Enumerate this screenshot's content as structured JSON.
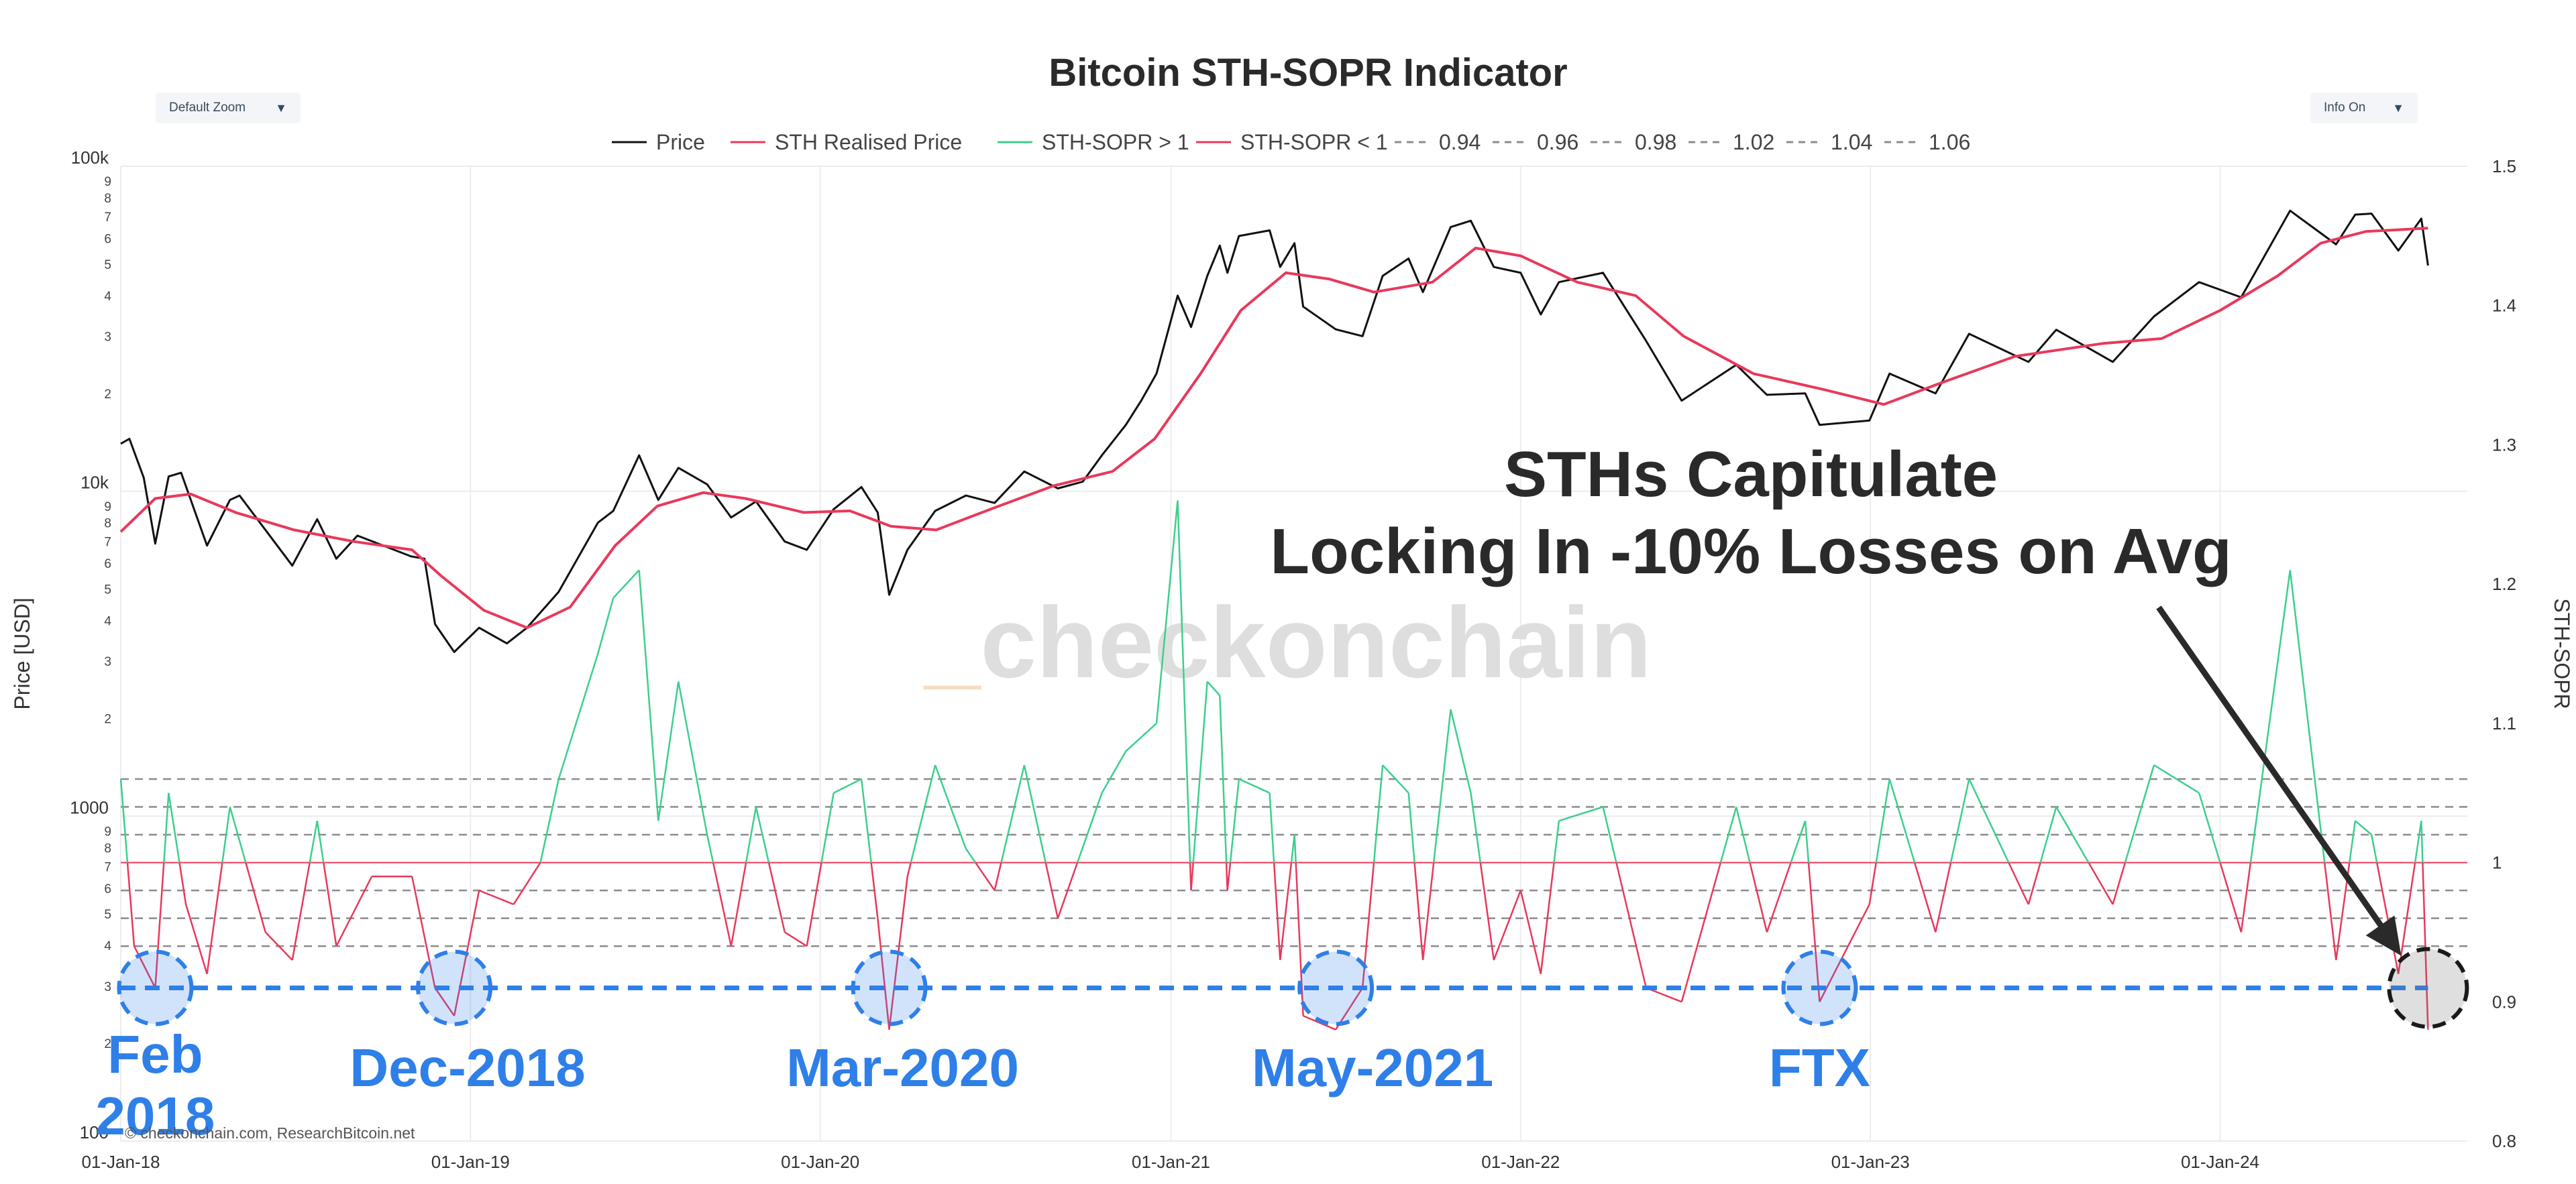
{
  "controls": {
    "zoom_label": "Default Zoom",
    "info_label": "Info On",
    "caret": "▼"
  },
  "watermark": {
    "prefix": "_",
    "text": "checkonchain"
  },
  "source_text": "© checkonchain.com, ResearchBitcoin.net",
  "colors": {
    "price": "#111111",
    "realised": "#e8395b",
    "sopr_up": "#3ccf8e",
    "sopr_down": "#e8395b",
    "levels": "#8c8c8c",
    "highlight": "#2f7fe8",
    "annotation": "#2a2a2a"
  },
  "annotations": {
    "headline_line1": "STHs Capitulate",
    "headline_line2": "Locking In -10% Losses on Avg",
    "events": [
      {
        "label": "Feb\n2018",
        "date": "2018-02-06",
        "sopr": 0.91
      },
      {
        "label": "Dec-2018",
        "date": "2018-12-15",
        "sopr": 0.91
      },
      {
        "label": "Mar-2020",
        "date": "2020-03-13",
        "sopr": 0.91
      },
      {
        "label": "May-2021",
        "date": "2021-06-22",
        "sopr": 0.91
      },
      {
        "label": "FTX",
        "date": "2022-11-09",
        "sopr": 0.91
      }
    ],
    "current_marker": {
      "date": "2024-08-05",
      "sopr": 0.91
    },
    "threshold_sopr": 0.91
  },
  "chart_data": {
    "type": "line",
    "title": "Bitcoin STH-SOPR Indicator",
    "legend_position": "top",
    "legend": [
      "Price",
      "STH Realised Price",
      "STH-SOPR > 1",
      "STH-SOPR < 1",
      "0.94",
      "0.96",
      "0.98",
      "1.02",
      "1.04",
      "1.06"
    ],
    "x_axis": {
      "range": [
        "2018-01-01",
        "2024-09-15"
      ],
      "ticks": [
        "01-Jan-18",
        "01-Jan-19",
        "01-Jan-20",
        "01-Jan-21",
        "01-Jan-22",
        "01-Jan-23",
        "01-Jan-24"
      ],
      "tick_dates": [
        "2018-01-01",
        "2019-01-01",
        "2020-01-01",
        "2021-01-01",
        "2022-01-01",
        "2023-01-01",
        "2024-01-01"
      ]
    },
    "y_left": {
      "label": "Price [USD]",
      "scale": "log",
      "range": [
        100,
        100000
      ],
      "major_ticks": [
        {
          "v": 100,
          "t": "100"
        },
        {
          "v": 1000,
          "t": "1000"
        },
        {
          "v": 10000,
          "t": "10k"
        },
        {
          "v": 100000,
          "t": "100k"
        }
      ],
      "minor_ticks": [
        2,
        3,
        4,
        5,
        6,
        7,
        8,
        9
      ]
    },
    "y_right": {
      "label": "STH-SOPR",
      "range": [
        0.8,
        1.5
      ],
      "ticks": [
        "0.8",
        "0.9",
        "1",
        "1.1",
        "1.2",
        "1.3",
        "1.4",
        "1.5"
      ]
    },
    "reference_levels": [
      0.94,
      0.96,
      0.98,
      1.02,
      1.04,
      1.06
    ],
    "grid": true,
    "series": [
      {
        "name": "Price",
        "axis": "left",
        "points": [
          [
            "2018-01-01",
            14000
          ],
          [
            "2018-01-10",
            14500
          ],
          [
            "2018-01-25",
            11000
          ],
          [
            "2018-02-06",
            6900
          ],
          [
            "2018-02-20",
            11100
          ],
          [
            "2018-03-05",
            11400
          ],
          [
            "2018-04-01",
            6800
          ],
          [
            "2018-04-25",
            9400
          ],
          [
            "2018-05-05",
            9700
          ],
          [
            "2018-06-29",
            5900
          ],
          [
            "2018-07-25",
            8200
          ],
          [
            "2018-08-14",
            6200
          ],
          [
            "2018-09-05",
            7300
          ],
          [
            "2018-10-31",
            6300
          ],
          [
            "2018-11-14",
            6200
          ],
          [
            "2018-11-25",
            3900
          ],
          [
            "2018-12-15",
            3200
          ],
          [
            "2019-01-10",
            3800
          ],
          [
            "2019-02-08",
            3400
          ],
          [
            "2019-03-01",
            3800
          ],
          [
            "2019-04-03",
            4900
          ],
          [
            "2019-05-14",
            8000
          ],
          [
            "2019-05-30",
            8700
          ],
          [
            "2019-06-26",
            12900
          ],
          [
            "2019-07-16",
            9400
          ],
          [
            "2019-08-06",
            11800
          ],
          [
            "2019-09-05",
            10500
          ],
          [
            "2019-09-30",
            8300
          ],
          [
            "2019-10-26",
            9300
          ],
          [
            "2019-11-25",
            7000
          ],
          [
            "2019-12-18",
            6600
          ],
          [
            "2020-01-15",
            8800
          ],
          [
            "2020-02-13",
            10300
          ],
          [
            "2020-03-01",
            8600
          ],
          [
            "2020-03-13",
            4800
          ],
          [
            "2020-04-01",
            6600
          ],
          [
            "2020-04-30",
            8700
          ],
          [
            "2020-06-01",
            9700
          ],
          [
            "2020-07-01",
            9200
          ],
          [
            "2020-08-01",
            11500
          ],
          [
            "2020-09-05",
            10200
          ],
          [
            "2020-10-01",
            10700
          ],
          [
            "2020-10-21",
            12900
          ],
          [
            "2020-11-15",
            16000
          ],
          [
            "2020-12-01",
            19000
          ],
          [
            "2020-12-17",
            23000
          ],
          [
            "2021-01-08",
            40000
          ],
          [
            "2021-01-22",
            32000
          ],
          [
            "2021-02-08",
            46000
          ],
          [
            "2021-02-21",
            57000
          ],
          [
            "2021-03-01",
            47000
          ],
          [
            "2021-03-13",
            61000
          ],
          [
            "2021-04-14",
            63500
          ],
          [
            "2021-04-25",
            49000
          ],
          [
            "2021-05-10",
            58000
          ],
          [
            "2021-05-19",
            37000
          ],
          [
            "2021-06-22",
            31500
          ],
          [
            "2021-07-20",
            30000
          ],
          [
            "2021-08-10",
            46000
          ],
          [
            "2021-09-06",
            52000
          ],
          [
            "2021-09-21",
            41000
          ],
          [
            "2021-10-20",
            65000
          ],
          [
            "2021-11-10",
            68000
          ],
          [
            "2021-12-04",
            49000
          ],
          [
            "2022-01-01",
            47000
          ],
          [
            "2022-01-22",
            35000
          ],
          [
            "2022-02-10",
            44000
          ],
          [
            "2022-03-28",
            47000
          ],
          [
            "2022-05-12",
            29000
          ],
          [
            "2022-06-18",
            19000
          ],
          [
            "2022-08-14",
            24500
          ],
          [
            "2022-09-15",
            19800
          ],
          [
            "2022-10-25",
            20000
          ],
          [
            "2022-11-09",
            16000
          ],
          [
            "2022-12-31",
            16500
          ],
          [
            "2023-01-21",
            23000
          ],
          [
            "2023-03-10",
            20000
          ],
          [
            "2023-04-14",
            30500
          ],
          [
            "2023-06-15",
            25000
          ],
          [
            "2023-07-14",
            31400
          ],
          [
            "2023-09-11",
            25000
          ],
          [
            "2023-10-24",
            34500
          ],
          [
            "2023-12-10",
            44000
          ],
          [
            "2024-01-23",
            39500
          ],
          [
            "2024-03-14",
            73000
          ],
          [
            "2024-05-01",
            57500
          ],
          [
            "2024-05-21",
            71000
          ],
          [
            "2024-06-07",
            71500
          ],
          [
            "2024-07-05",
            55000
          ],
          [
            "2024-07-29",
            69000
          ],
          [
            "2024-08-05",
            49500
          ]
        ]
      },
      {
        "name": "STH Realised Price",
        "axis": "left",
        "points": [
          [
            "2018-01-01",
            7500
          ],
          [
            "2018-02-06",
            9500
          ],
          [
            "2018-03-15",
            9800
          ],
          [
            "2018-05-01",
            8600
          ],
          [
            "2018-07-01",
            7600
          ],
          [
            "2018-09-01",
            7000
          ],
          [
            "2018-11-01",
            6600
          ],
          [
            "2018-12-01",
            5500
          ],
          [
            "2019-01-15",
            4300
          ],
          [
            "2019-03-01",
            3800
          ],
          [
            "2019-04-15",
            4400
          ],
          [
            "2019-06-01",
            6800
          ],
          [
            "2019-07-15",
            9000
          ],
          [
            "2019-09-01",
            9900
          ],
          [
            "2019-10-15",
            9500
          ],
          [
            "2019-12-15",
            8600
          ],
          [
            "2020-02-01",
            8700
          ],
          [
            "2020-03-15",
            7800
          ],
          [
            "2020-05-01",
            7600
          ],
          [
            "2020-07-01",
            8900
          ],
          [
            "2020-09-01",
            10400
          ],
          [
            "2020-11-01",
            11500
          ],
          [
            "2020-12-15",
            14500
          ],
          [
            "2021-02-01",
            23000
          ],
          [
            "2021-03-15",
            36000
          ],
          [
            "2021-05-01",
            47000
          ],
          [
            "2021-06-15",
            45000
          ],
          [
            "2021-08-01",
            41000
          ],
          [
            "2021-10-01",
            44000
          ],
          [
            "2021-11-15",
            56000
          ],
          [
            "2022-01-01",
            53000
          ],
          [
            "2022-03-01",
            44000
          ],
          [
            "2022-05-01",
            40000
          ],
          [
            "2022-06-20",
            30000
          ],
          [
            "2022-09-01",
            23000
          ],
          [
            "2022-11-15",
            20500
          ],
          [
            "2023-01-15",
            18500
          ],
          [
            "2023-03-15",
            21500
          ],
          [
            "2023-06-01",
            26000
          ],
          [
            "2023-09-01",
            28500
          ],
          [
            "2023-11-01",
            29500
          ],
          [
            "2024-01-01",
            36000
          ],
          [
            "2024-03-01",
            46000
          ],
          [
            "2024-04-15",
            58000
          ],
          [
            "2024-06-01",
            63000
          ],
          [
            "2024-08-05",
            64500
          ]
        ]
      },
      {
        "name": "STH-SOPR",
        "axis": "right",
        "points": [
          [
            "2018-01-01",
            1.06
          ],
          [
            "2018-01-15",
            0.94
          ],
          [
            "2018-02-06",
            0.91
          ],
          [
            "2018-02-20",
            1.05
          ],
          [
            "2018-03-10",
            0.97
          ],
          [
            "2018-04-01",
            0.92
          ],
          [
            "2018-04-25",
            1.04
          ],
          [
            "2018-06-01",
            0.95
          ],
          [
            "2018-06-29",
            0.93
          ],
          [
            "2018-07-25",
            1.03
          ],
          [
            "2018-08-14",
            0.94
          ],
          [
            "2018-09-20",
            0.99
          ],
          [
            "2018-11-01",
            0.99
          ],
          [
            "2018-11-25",
            0.91
          ],
          [
            "2018-12-15",
            0.89
          ],
          [
            "2019-01-10",
            0.98
          ],
          [
            "2019-02-15",
            0.97
          ],
          [
            "2019-03-15",
            1.0
          ],
          [
            "2019-04-03",
            1.06
          ],
          [
            "2019-05-14",
            1.15
          ],
          [
            "2019-05-30",
            1.19
          ],
          [
            "2019-06-26",
            1.21
          ],
          [
            "2019-07-16",
            1.03
          ],
          [
            "2019-08-06",
            1.13
          ],
          [
            "2019-09-05",
            1.02
          ],
          [
            "2019-09-30",
            0.94
          ],
          [
            "2019-10-26",
            1.04
          ],
          [
            "2019-11-25",
            0.95
          ],
          [
            "2019-12-18",
            0.94
          ],
          [
            "2020-01-15",
            1.05
          ],
          [
            "2020-02-13",
            1.06
          ],
          [
            "2020-03-01",
            0.96
          ],
          [
            "2020-03-13",
            0.88
          ],
          [
            "2020-04-01",
            0.99
          ],
          [
            "2020-04-30",
            1.07
          ],
          [
            "2020-06-01",
            1.01
          ],
          [
            "2020-07-01",
            0.98
          ],
          [
            "2020-08-01",
            1.07
          ],
          [
            "2020-09-05",
            0.96
          ],
          [
            "2020-10-21",
            1.05
          ],
          [
            "2020-11-15",
            1.08
          ],
          [
            "2020-12-17",
            1.1
          ],
          [
            "2021-01-08",
            1.26
          ],
          [
            "2021-01-22",
            0.98
          ],
          [
            "2021-02-08",
            1.13
          ],
          [
            "2021-02-21",
            1.12
          ],
          [
            "2021-03-01",
            0.98
          ],
          [
            "2021-03-13",
            1.06
          ],
          [
            "2021-04-14",
            1.05
          ],
          [
            "2021-04-25",
            0.93
          ],
          [
            "2021-05-10",
            1.02
          ],
          [
            "2021-05-19",
            0.89
          ],
          [
            "2021-06-22",
            0.88
          ],
          [
            "2021-07-20",
            0.91
          ],
          [
            "2021-08-10",
            1.07
          ],
          [
            "2021-09-06",
            1.05
          ],
          [
            "2021-09-21",
            0.93
          ],
          [
            "2021-10-20",
            1.11
          ],
          [
            "2021-11-10",
            1.05
          ],
          [
            "2021-12-04",
            0.93
          ],
          [
            "2022-01-01",
            0.98
          ],
          [
            "2022-01-22",
            0.92
          ],
          [
            "2022-02-10",
            1.03
          ],
          [
            "2022-03-28",
            1.04
          ],
          [
            "2022-05-12",
            0.91
          ],
          [
            "2022-06-18",
            0.9
          ],
          [
            "2022-08-14",
            1.04
          ],
          [
            "2022-09-15",
            0.95
          ],
          [
            "2022-10-25",
            1.03
          ],
          [
            "2022-11-09",
            0.9
          ],
          [
            "2022-12-31",
            0.97
          ],
          [
            "2023-01-21",
            1.06
          ],
          [
            "2023-03-10",
            0.95
          ],
          [
            "2023-04-14",
            1.06
          ],
          [
            "2023-06-15",
            0.97
          ],
          [
            "2023-07-14",
            1.04
          ],
          [
            "2023-09-11",
            0.97
          ],
          [
            "2023-10-24",
            1.07
          ],
          [
            "2023-12-10",
            1.05
          ],
          [
            "2024-01-23",
            0.95
          ],
          [
            "2024-03-14",
            1.21
          ],
          [
            "2024-05-01",
            0.93
          ],
          [
            "2024-05-21",
            1.03
          ],
          [
            "2024-06-07",
            1.02
          ],
          [
            "2024-07-05",
            0.92
          ],
          [
            "2024-07-29",
            1.03
          ],
          [
            "2024-08-05",
            0.88
          ]
        ]
      }
    ]
  }
}
